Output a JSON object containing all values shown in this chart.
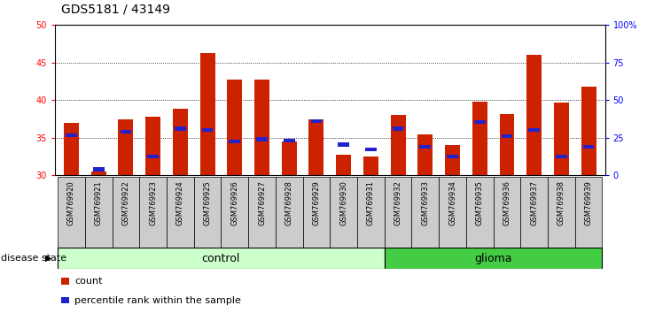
{
  "title": "GDS5181 / 43149",
  "samples": [
    "GSM769920",
    "GSM769921",
    "GSM769922",
    "GSM769923",
    "GSM769924",
    "GSM769925",
    "GSM769926",
    "GSM769927",
    "GSM769928",
    "GSM769929",
    "GSM769930",
    "GSM769931",
    "GSM769932",
    "GSM769933",
    "GSM769934",
    "GSM769935",
    "GSM769936",
    "GSM769937",
    "GSM769938",
    "GSM769939"
  ],
  "count_values": [
    37.0,
    30.5,
    37.5,
    37.8,
    38.9,
    46.3,
    42.7,
    42.7,
    34.5,
    37.5,
    32.7,
    32.5,
    38.0,
    35.5,
    34.0,
    39.8,
    38.1,
    46.0,
    39.7,
    41.8
  ],
  "percentile_values": [
    35.3,
    30.8,
    35.8,
    32.5,
    36.2,
    36.0,
    34.5,
    34.8,
    34.6,
    37.2,
    34.1,
    33.4,
    36.2,
    33.8,
    32.5,
    37.1,
    35.2,
    36.0,
    32.5,
    33.8
  ],
  "n_control": 12,
  "n_glioma": 8,
  "ylim_left": [
    30,
    50
  ],
  "ylim_right": [
    0,
    100
  ],
  "yticks_left": [
    30,
    35,
    40,
    45,
    50
  ],
  "yticks_right": [
    0,
    25,
    50,
    75,
    100
  ],
  "ytick_labels_right": [
    "0",
    "25",
    "50",
    "75",
    "100%"
  ],
  "bar_color": "#cc2200",
  "percentile_color": "#2222cc",
  "bar_width": 0.55,
  "xtick_bg_color": "#cccccc",
  "control_color": "#ccffcc",
  "glioma_color": "#44cc44",
  "legend_count_label": "count",
  "legend_percentile_label": "percentile rank within the sample",
  "group_label": "disease state",
  "control_label": "control",
  "glioma_label": "glioma",
  "title_fontsize": 10,
  "axis_fontsize": 8,
  "tick_fontsize": 7,
  "label_fontsize": 9
}
